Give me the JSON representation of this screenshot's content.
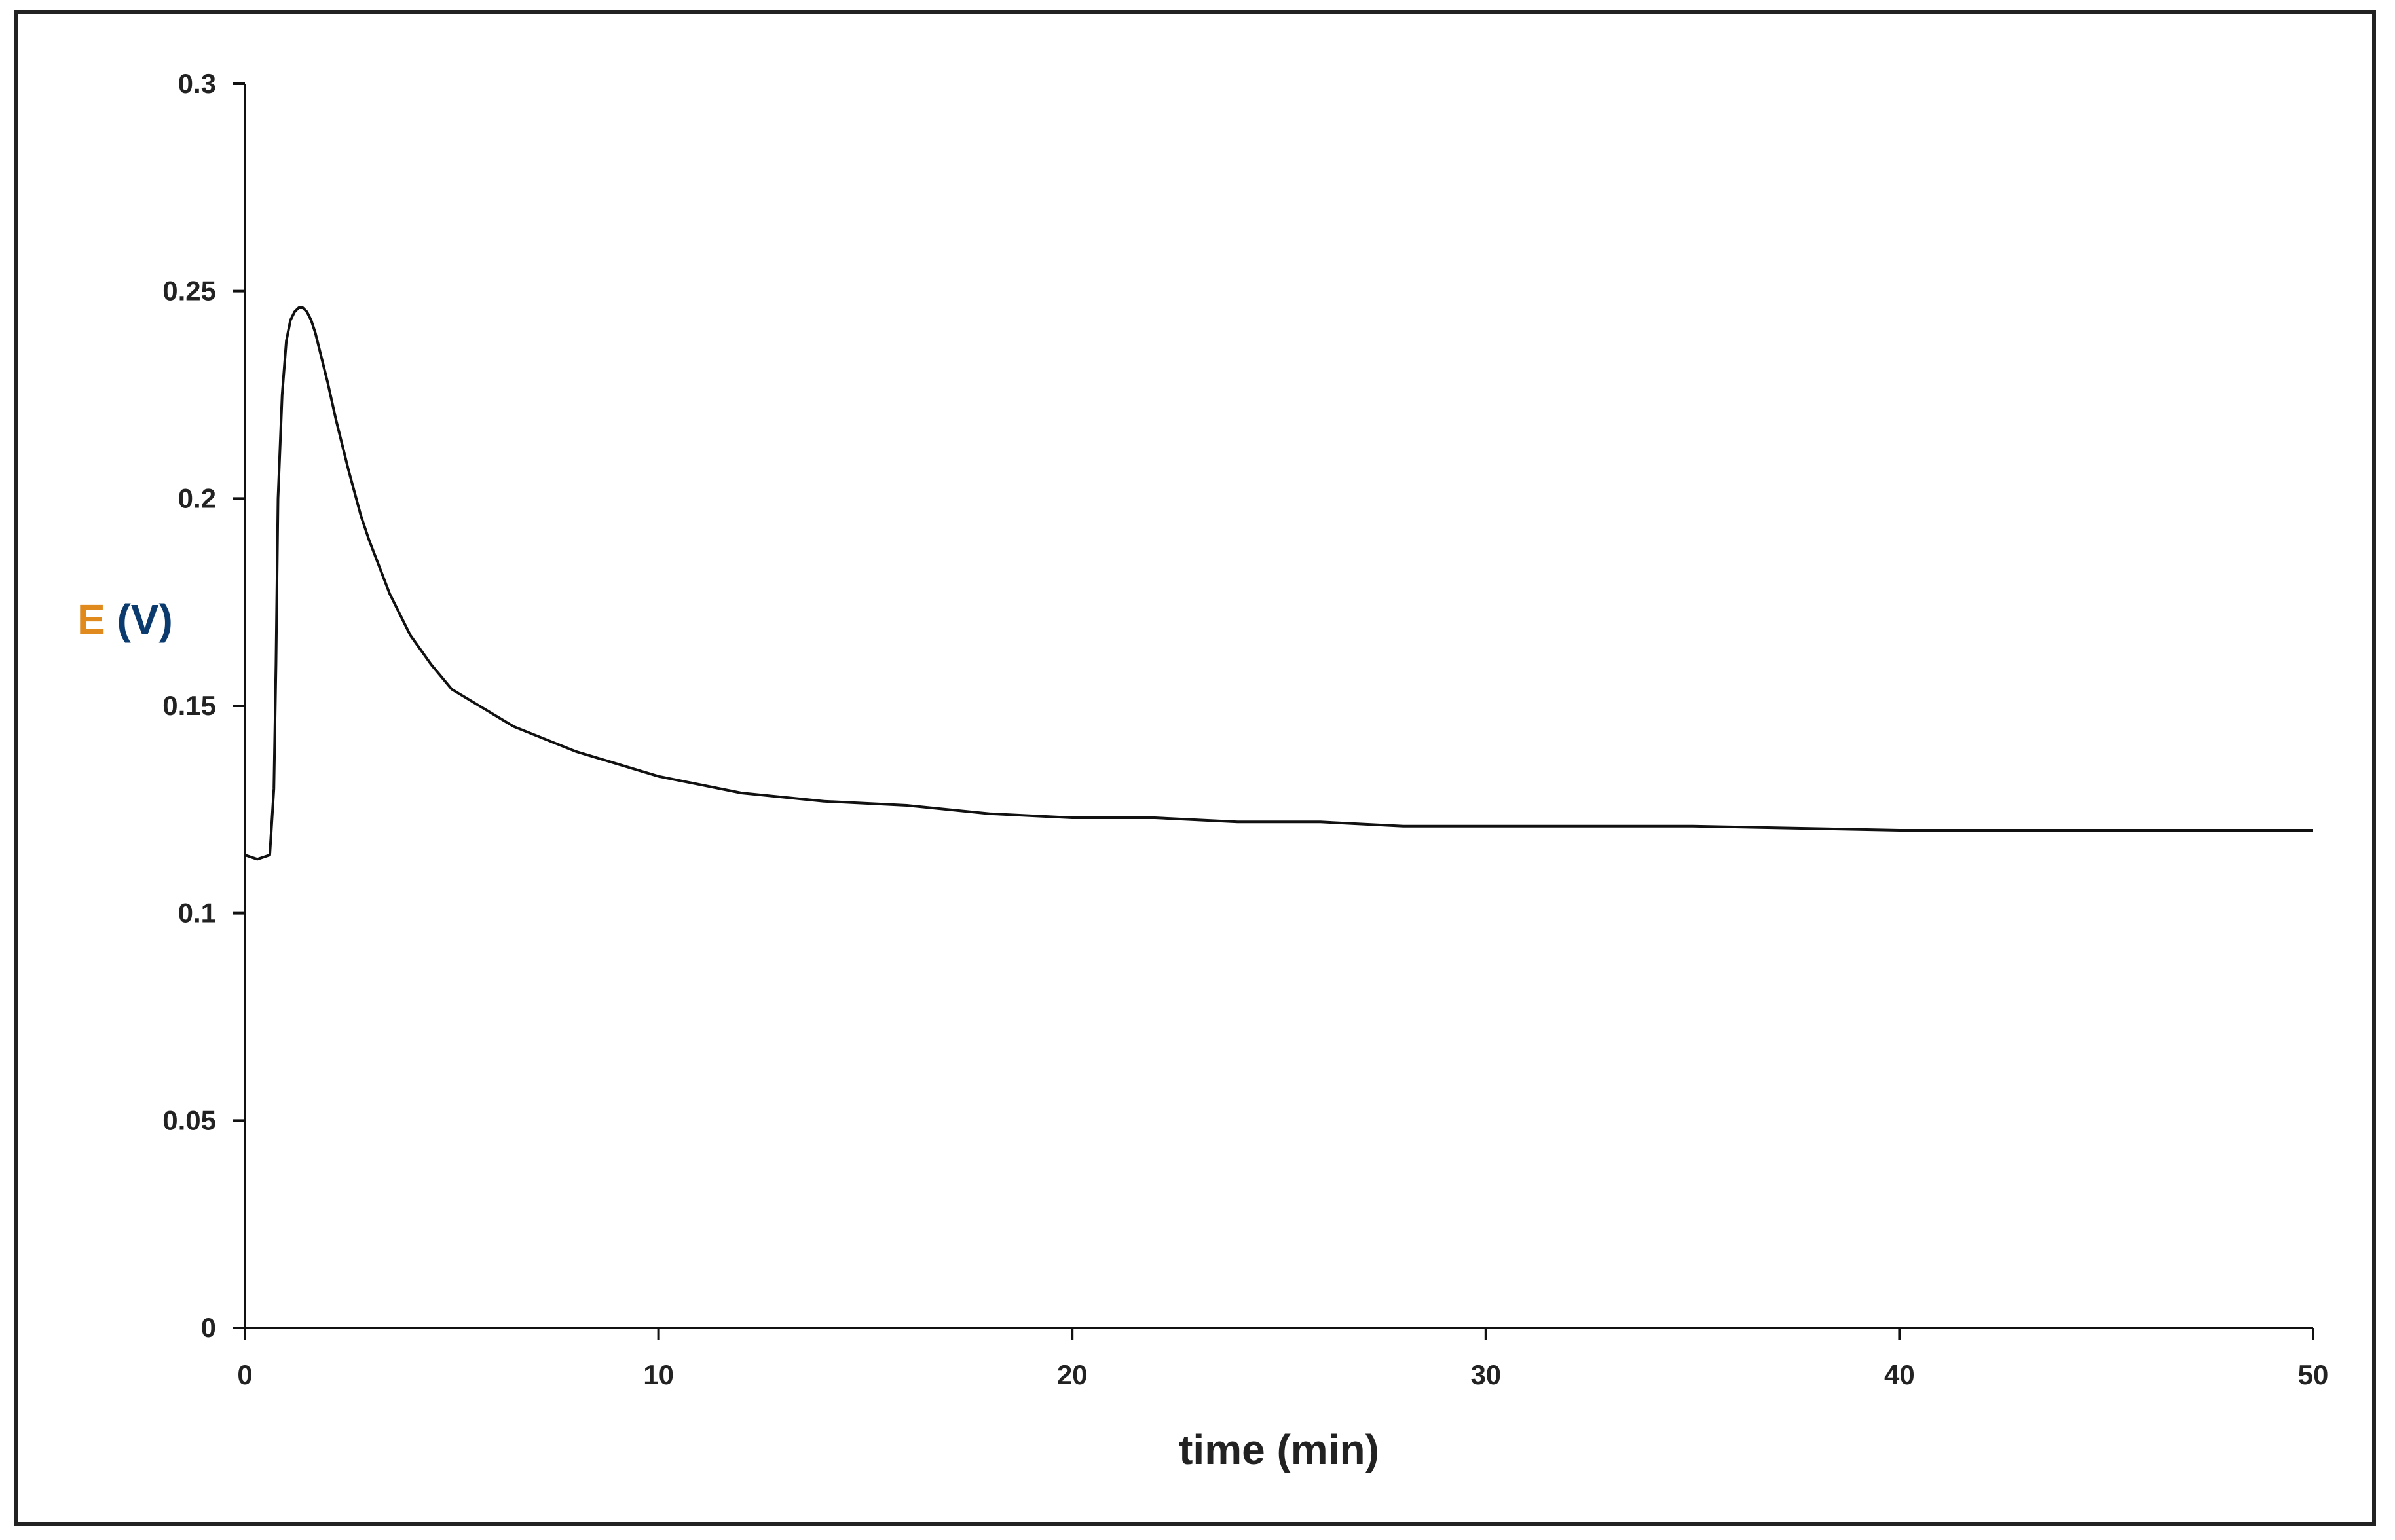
{
  "chart_data": {
    "type": "line",
    "title": "",
    "xlabel": "time (min)",
    "ylabel": "E (V)",
    "xlim": [
      0,
      50
    ],
    "ylim": [
      0,
      0.3
    ],
    "x_ticks": [
      "0",
      "10",
      "20",
      "30",
      "40",
      "50"
    ],
    "y_ticks": [
      "0",
      "0.05",
      "0.1",
      "0.15",
      "0.2",
      "0.25",
      "0.3"
    ],
    "grid": false,
    "legend": "none",
    "colors": {
      "line": "#111111",
      "axis": "#111111",
      "ylabel": "#0b3a6e",
      "ylabel_accent": "#e08a1e"
    },
    "series": [
      {
        "x": [
          0,
          0.3,
          0.6,
          0.7,
          0.75,
          0.8,
          0.9,
          1.0,
          1.1,
          1.2,
          1.3,
          1.4,
          1.5,
          1.6,
          1.7,
          1.8,
          2.0,
          2.2,
          2.5,
          2.8,
          3.0,
          3.5,
          4.0,
          4.5,
          5.0,
          5.5,
          6.0,
          6.5,
          7.0,
          8.0,
          9.0,
          10.0,
          11.0,
          12.0,
          14.0,
          16.0,
          18.0,
          20.0,
          22.0,
          24.0,
          26.0,
          28.0,
          30.0,
          35.0,
          40.0,
          45.0,
          50.0
        ],
        "y": [
          0.114,
          0.113,
          0.114,
          0.13,
          0.16,
          0.2,
          0.225,
          0.238,
          0.243,
          0.245,
          0.246,
          0.246,
          0.245,
          0.243,
          0.24,
          0.236,
          0.228,
          0.219,
          0.207,
          0.196,
          0.19,
          0.177,
          0.167,
          0.16,
          0.154,
          0.151,
          0.148,
          0.145,
          0.143,
          0.139,
          0.136,
          0.133,
          0.131,
          0.129,
          0.127,
          0.126,
          0.124,
          0.123,
          0.123,
          0.122,
          0.122,
          0.121,
          0.121,
          0.121,
          0.12,
          0.12,
          0.12
        ]
      }
    ]
  }
}
